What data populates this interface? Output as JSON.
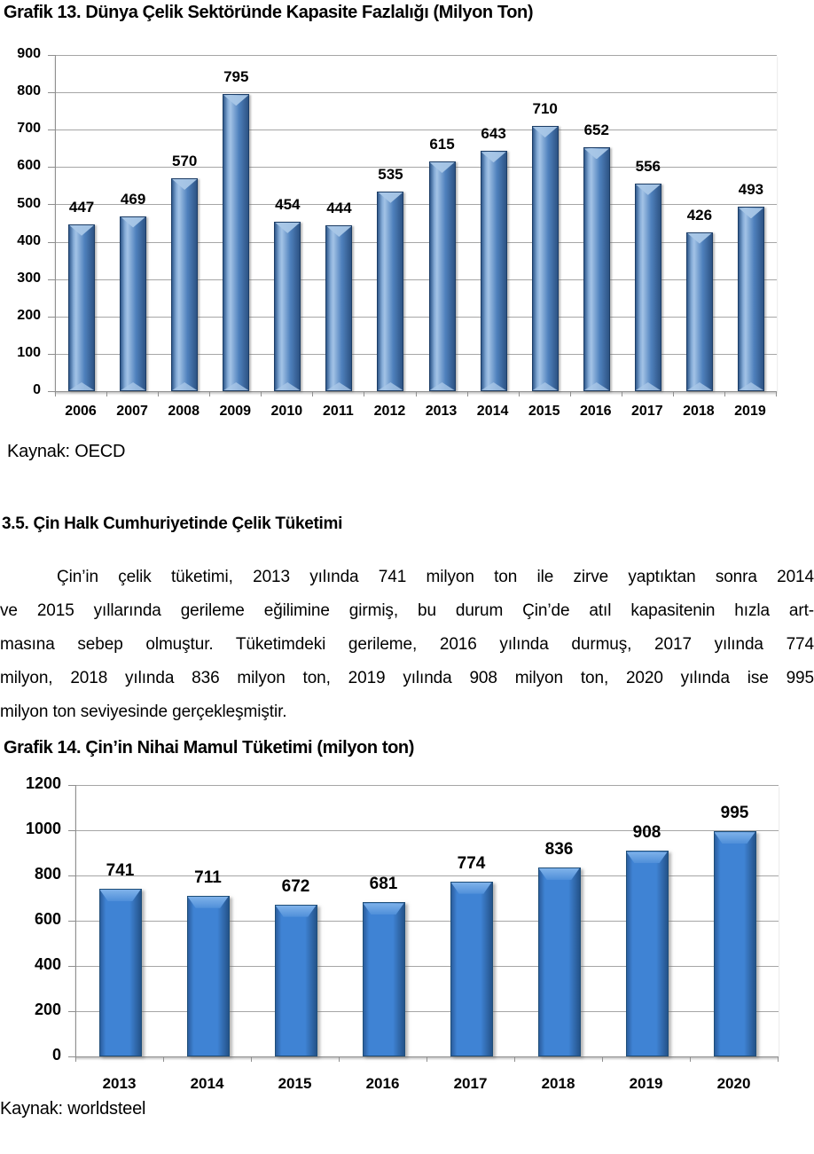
{
  "page": {
    "section_heading": "3.5. Çin Halk Cumhuriyetinde Çelik Tüketimi",
    "paragraph_lines": [
      "Çin’in çelik tüketimi, 2013 yılında 741 milyon ton ile zirve yaptıktan sonra 2014",
      "ve 2015 yıllarında gerileme eğilimine girmiş, bu durum Çin’de atıl kapasitenin hızla art-",
      "masına sebep olmuştur. Tüketimdeki gerileme, 2016 yılında durmuş, 2017 yılında 774",
      "milyon, 2018 yılında 836 milyon ton, 2019 yılında 908 milyon ton, 2020 yılında ise 995",
      "milyon ton seviyesinde gerçekleşmiştir."
    ]
  },
  "chart_data": [
    {
      "type": "bar",
      "title": "Grafik 13. Dünya Çelik Sektöründe Kapasite Fazlalığı (Milyon Ton)",
      "source": "Kaynak: OECD",
      "categories": [
        "2006",
        "2007",
        "2008",
        "2009",
        "2010",
        "2011",
        "2012",
        "2013",
        "2014",
        "2015",
        "2016",
        "2017",
        "2018",
        "2019"
      ],
      "values": [
        447,
        469,
        570,
        795,
        454,
        444,
        535,
        615,
        643,
        710,
        652,
        556,
        426,
        493
      ],
      "xlabel": "",
      "ylabel": "",
      "ylim": [
        0,
        900
      ],
      "ytick_step": 100,
      "grid": true,
      "legend": false,
      "data_labels": true,
      "colors": {
        "bar_fill": "#4f81bd",
        "bar_border": "#1c3d66",
        "bar_highlight": "#a9c7e7",
        "grid": "#a6a6a6",
        "axis": "#8f8f8f"
      }
    },
    {
      "type": "bar",
      "title": "Grafik 14. Çin’in Nihai Mamul Tüketimi (milyon ton)",
      "source": "Kaynak: worldsteel",
      "categories": [
        "2013",
        "2014",
        "2015",
        "2016",
        "2017",
        "2018",
        "2019",
        "2020"
      ],
      "values": [
        741,
        711,
        672,
        681,
        774,
        836,
        908,
        995
      ],
      "xlabel": "",
      "ylabel": "",
      "ylim": [
        0,
        1200
      ],
      "ytick_step": 200,
      "grid": true,
      "legend": false,
      "data_labels": true,
      "colors": {
        "bar_fill": "#3f83d4",
        "bar_border": "#1f4e79",
        "bar_highlight": "#7fb2ea",
        "grid": "#a6a6a6",
        "axis": "#8f8f8f"
      }
    }
  ]
}
